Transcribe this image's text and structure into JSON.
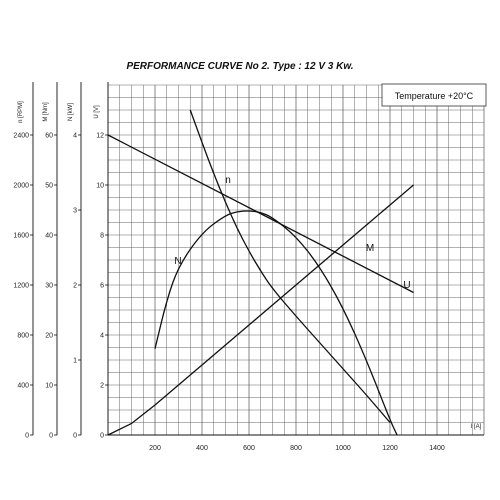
{
  "chart_data": {
    "type": "line",
    "title": "PERFORMANCE CURVE No 2.  Type : 12 V  3 Kw.",
    "annotation": "Temperature  +20°C",
    "x_axis": {
      "label": "I [A]",
      "range": [
        0,
        1400
      ],
      "ticks": [
        "200",
        "400",
        "600",
        "800",
        "1000",
        "1200",
        "1400"
      ],
      "tick_values": [
        200,
        400,
        600,
        800,
        1000,
        1200,
        1400
      ]
    },
    "y_axes": [
      {
        "id": "n",
        "label": "n [RPM]",
        "range": [
          0,
          2400
        ],
        "ticks": [
          "0",
          "400",
          "800",
          "1200",
          "1600",
          "2000",
          "2400"
        ],
        "tick_values": [
          0,
          400,
          800,
          1200,
          1600,
          2000,
          2400
        ]
      },
      {
        "id": "M",
        "label": "M [Nm]",
        "range": [
          0,
          60
        ],
        "ticks": [
          "0",
          "10",
          "20",
          "30",
          "40",
          "50",
          "60"
        ],
        "tick_values": [
          0,
          10,
          20,
          30,
          40,
          50,
          60
        ]
      },
      {
        "id": "N",
        "label": "N [kW]",
        "range": [
          0,
          4
        ],
        "ticks": [
          "0",
          "1",
          "2",
          "3",
          "4"
        ],
        "tick_values": [
          0,
          1,
          2,
          3,
          4
        ]
      },
      {
        "id": "U",
        "label": "U [V]",
        "range": [
          0,
          12
        ],
        "ticks": [
          "0",
          "2",
          "4",
          "6",
          "8",
          "10",
          "12"
        ],
        "tick_values": [
          0,
          2,
          4,
          6,
          8,
          10,
          12
        ]
      }
    ],
    "series": [
      {
        "name": "n",
        "axis": "n",
        "x": [
          350,
          400,
          450,
          500,
          550,
          600,
          650,
          700,
          800,
          900,
          1000,
          1100,
          1200
        ],
        "y": [
          2600,
          2340,
          2090,
          1860,
          1650,
          1470,
          1310,
          1170,
          950,
          740,
          530,
          320,
          100
        ]
      },
      {
        "name": "M",
        "axis": "M",
        "x": [
          0,
          100,
          200,
          300,
          400,
          500,
          600,
          700,
          800,
          900,
          1000,
          1100,
          1200,
          1300
        ],
        "y": [
          0,
          2.3,
          6,
          10,
          14,
          18,
          22,
          26,
          30,
          34,
          38,
          42,
          46,
          50
        ]
      },
      {
        "name": "N",
        "axis": "N",
        "x": [
          200,
          250,
          300,
          400,
          500,
          550,
          600,
          650,
          700,
          800,
          900,
          1000,
          1100,
          1200,
          1230
        ],
        "y": [
          1.15,
          1.8,
          2.25,
          2.7,
          2.93,
          2.98,
          2.99,
          2.97,
          2.9,
          2.65,
          2.25,
          1.7,
          1.0,
          0.2,
          0
        ]
      },
      {
        "name": "U",
        "axis": "U",
        "x": [
          0,
          1300
        ],
        "y": [
          12,
          5.7
        ]
      }
    ]
  }
}
